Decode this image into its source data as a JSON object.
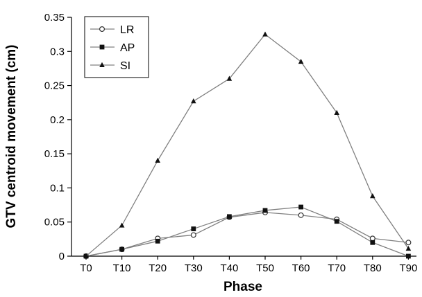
{
  "chart_data": {
    "type": "line",
    "title": "",
    "xlabel": "Phase",
    "ylabel": "GTV centroid movement (cm)",
    "categories": [
      "T0",
      "T10",
      "T20",
      "T30",
      "T40",
      "T50",
      "T60",
      "T70",
      "T80",
      "T90"
    ],
    "ylim": [
      0,
      0.35
    ],
    "yticks": [
      "0",
      "0.05",
      "0.1",
      "0.15",
      "0.2",
      "0.25",
      "0.3",
      "0.35"
    ],
    "grid": false,
    "legend_position": "top-left",
    "series": [
      {
        "name": "LR",
        "marker": "open-circle",
        "color": "#808080",
        "values": [
          0,
          0.01,
          0.026,
          0.031,
          0.057,
          0.064,
          0.06,
          0.054,
          0.026,
          0.02
        ]
      },
      {
        "name": "AP",
        "marker": "filled-square",
        "color": "#808080",
        "values": [
          0,
          0.01,
          0.022,
          0.04,
          0.058,
          0.067,
          0.072,
          0.051,
          0.02,
          0
        ]
      },
      {
        "name": "SI",
        "marker": "filled-triangle",
        "color": "#808080",
        "values": [
          0,
          0.045,
          0.14,
          0.227,
          0.26,
          0.325,
          0.285,
          0.21,
          0.088,
          0.011
        ]
      }
    ]
  }
}
